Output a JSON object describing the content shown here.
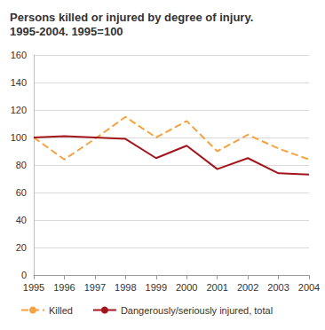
{
  "chart_data": {
    "type": "line",
    "title": "Persons killed or injured by degree of injury. 1995-2004. 1995=100",
    "categories": [
      "1995",
      "1996",
      "1997",
      "1998",
      "1999",
      "2000",
      "2001",
      "2002",
      "2003",
      "2004"
    ],
    "series": [
      {
        "name": "Killed",
        "color": "#f4a340",
        "line_style": "dashed",
        "values": [
          100,
          84,
          99,
          115,
          100,
          112,
          90,
          102,
          92,
          84
        ]
      },
      {
        "name": "Dangerously/seriously injured, total",
        "color": "#a3151c",
        "line_style": "solid",
        "values": [
          100,
          101,
          100,
          99,
          85,
          94,
          77,
          85,
          74,
          73
        ]
      }
    ],
    "ylim": [
      0,
      160
    ],
    "yticks": [
      0,
      20,
      40,
      60,
      80,
      100,
      120,
      140,
      160
    ],
    "grid": true,
    "legend": "bottom"
  }
}
